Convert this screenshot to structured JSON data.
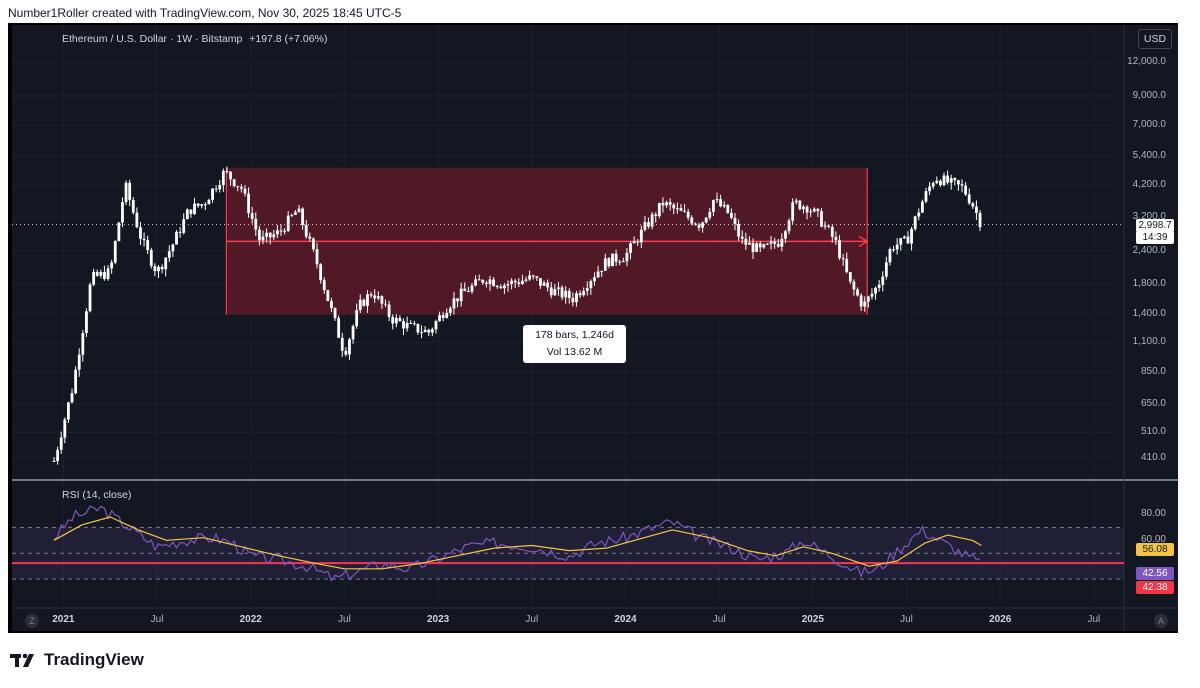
{
  "credit": "Number1Roller created with TradingView.com, Nov 30, 2025 18:45 UTC-5",
  "legend": {
    "symbol": "Ethereum / U.S. Dollar · 1W · Bitstamp",
    "change": "+197.8 (+7.06%)"
  },
  "currency_button": "USD",
  "rsi_title": "RSI (14, close)",
  "tooltip": {
    "bars": "178 bars, 1,246d",
    "vol": "Vol 13.62 M"
  },
  "price_tags": {
    "last_price": "2,998.7",
    "countdown": "14:39",
    "rsi_ma": "56.08",
    "rsi": "42.56",
    "rsi_line": "42.38"
  },
  "corner_left": "Z",
  "corner_right": "A",
  "footer_brand": "TradingView",
  "colors": {
    "background": "#131722",
    "up_candle": "#ffffff",
    "box_fill": "#5c1a26",
    "box_stroke": "#ff3b4e",
    "rsi": "#7e57c2",
    "rsi_ma": "#f5c542",
    "rsi_level": "#ff3355"
  },
  "chart_data": {
    "type": "candlestick",
    "scale": "log",
    "price_axis_ticks": [
      12000,
      9000,
      7000,
      5400,
      4200,
      3200,
      2400,
      1800,
      1400,
      1100,
      850,
      650,
      510,
      410
    ],
    "price_axis_labels": [
      "12,000.0",
      "9,000.0",
      "7,000.0",
      "5,400.0",
      "4,200.0",
      "3,200.0",
      "2,400.0",
      "1,800.0",
      "1,400.0",
      "1,100.0",
      "850.0",
      "650.0",
      "510.0",
      "410.0"
    ],
    "time_axis_labels": [
      {
        "label": "2021",
        "bold": true,
        "t": 2021.0
      },
      {
        "label": "Jul",
        "bold": false,
        "t": 2021.5
      },
      {
        "label": "2022",
        "bold": true,
        "t": 2022.0
      },
      {
        "label": "Jul",
        "bold": false,
        "t": 2022.5
      },
      {
        "label": "2023",
        "bold": true,
        "t": 2023.0
      },
      {
        "label": "Jul",
        "bold": false,
        "t": 2023.5
      },
      {
        "label": "2024",
        "bold": true,
        "t": 2024.0
      },
      {
        "label": "Jul",
        "bold": false,
        "t": 2024.5
      },
      {
        "label": "2025",
        "bold": true,
        "t": 2025.0
      },
      {
        "label": "Jul",
        "bold": false,
        "t": 2025.5
      },
      {
        "label": "2026",
        "bold": true,
        "t": 2026.0
      },
      {
        "label": "Jul",
        "bold": false,
        "t": 2026.5
      }
    ],
    "price_path": [
      [
        2020.95,
        400
      ],
      [
        2021.05,
        750
      ],
      [
        2021.15,
        1900
      ],
      [
        2021.25,
        2000
      ],
      [
        2021.33,
        4200
      ],
      [
        2021.42,
        2600
      ],
      [
        2021.5,
        2000
      ],
      [
        2021.58,
        2500
      ],
      [
        2021.67,
        3400
      ],
      [
        2021.75,
        3600
      ],
      [
        2021.86,
        4700
      ],
      [
        2021.95,
        4100
      ],
      [
        2022.05,
        2600
      ],
      [
        2022.15,
        2800
      ],
      [
        2022.25,
        3400
      ],
      [
        2022.35,
        2200
      ],
      [
        2022.45,
        1300
      ],
      [
        2022.5,
        1000
      ],
      [
        2022.58,
        1500
      ],
      [
        2022.65,
        1700
      ],
      [
        2022.75,
        1350
      ],
      [
        2022.85,
        1250
      ],
      [
        2022.95,
        1200
      ],
      [
        2023.05,
        1500
      ],
      [
        2023.12,
        1650
      ],
      [
        2023.25,
        1900
      ],
      [
        2023.35,
        1800
      ],
      [
        2023.5,
        1900
      ],
      [
        2023.62,
        1700
      ],
      [
        2023.72,
        1600
      ],
      [
        2023.8,
        1850
      ],
      [
        2023.9,
        2200
      ],
      [
        2024.0,
        2300
      ],
      [
        2024.1,
        2900
      ],
      [
        2024.2,
        3600
      ],
      [
        2024.3,
        3300
      ],
      [
        2024.4,
        3000
      ],
      [
        2024.47,
        3700
      ],
      [
        2024.55,
        3300
      ],
      [
        2024.62,
        2600
      ],
      [
        2024.72,
        2400
      ],
      [
        2024.82,
        2600
      ],
      [
        2024.9,
        3600
      ],
      [
        2024.97,
        3500
      ],
      [
        2025.03,
        3200
      ],
      [
        2025.12,
        2600
      ],
      [
        2025.2,
        1800
      ],
      [
        2025.27,
        1500
      ],
      [
        2025.35,
        1800
      ],
      [
        2025.42,
        2500
      ],
      [
        2025.5,
        2600
      ],
      [
        2025.58,
        3600
      ],
      [
        2025.65,
        4500
      ],
      [
        2025.72,
        4300
      ],
      [
        2025.8,
        4100
      ],
      [
        2025.85,
        3600
      ],
      [
        2025.9,
        3000
      ]
    ],
    "range_box": {
      "t0": 2021.87,
      "t1": 2025.29,
      "high": 4870,
      "low": 1390,
      "mid": 2600,
      "bars": 178,
      "days": 1246,
      "volume": "13.62 M"
    },
    "rsi_axis_ticks": [
      80,
      60
    ],
    "rsi_axis_labels": [
      "80.00",
      "60.00"
    ],
    "rsi_levels": [
      70,
      50,
      30
    ],
    "rsi_path": [
      [
        2020.95,
        62
      ],
      [
        2021.05,
        78
      ],
      [
        2021.2,
        85
      ],
      [
        2021.35,
        70
      ],
      [
        2021.5,
        55
      ],
      [
        2021.65,
        60
      ],
      [
        2021.8,
        62
      ],
      [
        2021.9,
        58
      ],
      [
        2022.0,
        48
      ],
      [
        2022.15,
        45
      ],
      [
        2022.3,
        40
      ],
      [
        2022.45,
        30
      ],
      [
        2022.55,
        35
      ],
      [
        2022.7,
        42
      ],
      [
        2022.85,
        38
      ],
      [
        2023.0,
        46
      ],
      [
        2023.15,
        55
      ],
      [
        2023.3,
        58
      ],
      [
        2023.5,
        55
      ],
      [
        2023.7,
        48
      ],
      [
        2023.85,
        58
      ],
      [
        2024.0,
        62
      ],
      [
        2024.15,
        70
      ],
      [
        2024.25,
        74
      ],
      [
        2024.4,
        62
      ],
      [
        2024.55,
        55
      ],
      [
        2024.7,
        45
      ],
      [
        2024.85,
        50
      ],
      [
        2024.95,
        60
      ],
      [
        2025.1,
        48
      ],
      [
        2025.25,
        35
      ],
      [
        2025.35,
        38
      ],
      [
        2025.45,
        52
      ],
      [
        2025.58,
        68
      ],
      [
        2025.7,
        58
      ],
      [
        2025.82,
        48
      ],
      [
        2025.9,
        42
      ]
    ],
    "rsi_ma_path": [
      [
        2020.95,
        60
      ],
      [
        2021.1,
        72
      ],
      [
        2021.25,
        78
      ],
      [
        2021.4,
        68
      ],
      [
        2021.55,
        60
      ],
      [
        2021.75,
        62
      ],
      [
        2021.95,
        55
      ],
      [
        2022.15,
        48
      ],
      [
        2022.35,
        42
      ],
      [
        2022.5,
        38
      ],
      [
        2022.7,
        38
      ],
      [
        2022.9,
        42
      ],
      [
        2023.1,
        48
      ],
      [
        2023.3,
        54
      ],
      [
        2023.5,
        56
      ],
      [
        2023.7,
        52
      ],
      [
        2023.9,
        54
      ],
      [
        2024.1,
        62
      ],
      [
        2024.25,
        68
      ],
      [
        2024.45,
        62
      ],
      [
        2024.65,
        52
      ],
      [
        2024.8,
        48
      ],
      [
        2024.95,
        55
      ],
      [
        2025.1,
        50
      ],
      [
        2025.3,
        40
      ],
      [
        2025.45,
        44
      ],
      [
        2025.6,
        58
      ],
      [
        2025.72,
        64
      ],
      [
        2025.85,
        60
      ],
      [
        2025.9,
        56
      ]
    ]
  }
}
